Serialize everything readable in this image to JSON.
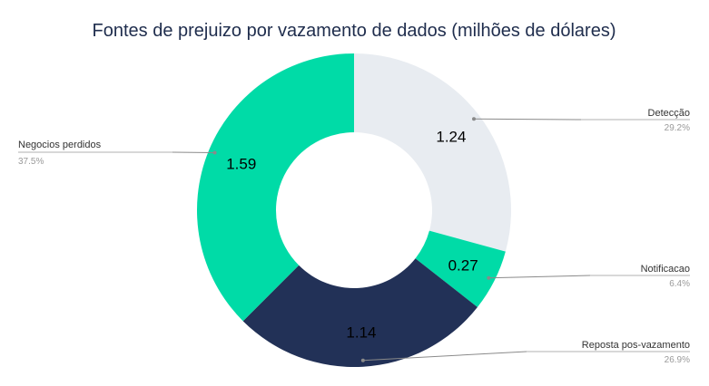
{
  "chart_data": {
    "type": "pie",
    "title": "Fontes de prejuizo por vazamento de dados (milhões de dólares)",
    "donut": true,
    "slices": [
      {
        "label": "Detecção",
        "value": 1.24,
        "value_label": "1.24",
        "percent_label": "29.2%",
        "color": "#e8ecf1",
        "side": "right"
      },
      {
        "label": "Notificacao",
        "value": 0.27,
        "value_label": "0.27",
        "percent_label": "6.4%",
        "color": "#00dba7",
        "side": "right"
      },
      {
        "label": "Reposta pos-vazamento",
        "value": 1.14,
        "value_label": "1.14",
        "percent_label": "26.9%",
        "color": "#223157",
        "side": "right"
      },
      {
        "label": "Negocios perdidos",
        "value": 1.59,
        "value_label": "1.59",
        "percent_label": "37.5%",
        "color": "#00dba7",
        "side": "left"
      }
    ]
  }
}
